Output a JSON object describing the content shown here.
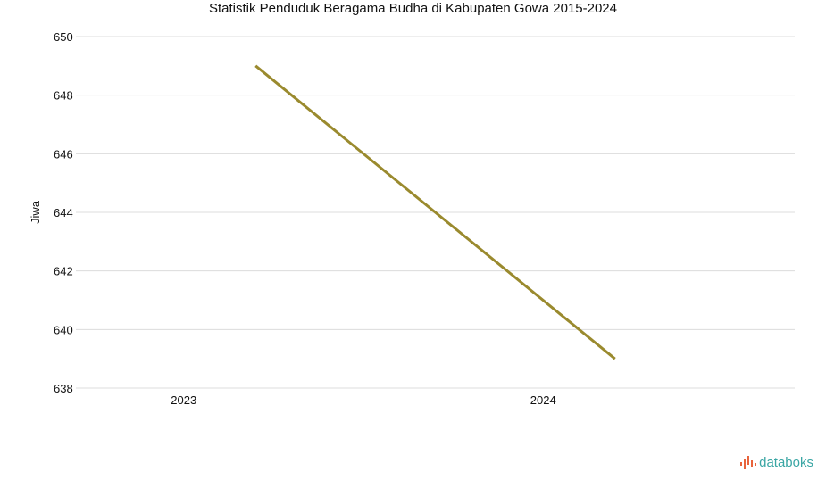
{
  "chart_data": {
    "type": "line",
    "title": "Statistik Penduduk Beragama Budha di Kabupaten Gowa 2015-2024",
    "ylabel": "Jiwa",
    "xlabel": "",
    "x": [
      "2023",
      "2024"
    ],
    "series": [
      {
        "color": "#9a8a2e",
        "values": [
          649,
          639
        ]
      }
    ],
    "ylim": [
      638,
      650
    ],
    "yticks": [
      638,
      640,
      642,
      644,
      646,
      648,
      650
    ],
    "grid": true,
    "legend": "none"
  },
  "branding": {
    "logo_text": "databoks",
    "logo_color": "#3aa6a4",
    "logo_mark_color": "#e8643c"
  }
}
